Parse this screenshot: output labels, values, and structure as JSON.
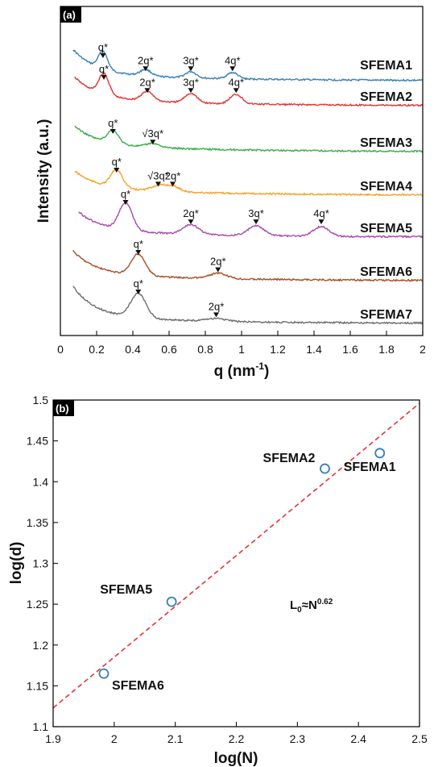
{
  "chart_data": [
    {
      "panel": "(a)",
      "type": "line",
      "xlabel": "q (nm",
      "xlabel_sup": "-1",
      "xlabel_close": ")",
      "ylabel": "Intensity (a.u.)",
      "xlim": [
        0,
        2
      ],
      "xticks": [
        "0",
        "0.2",
        "0.4",
        "0.6",
        "0.8",
        "1",
        "1.2",
        "1.4",
        "1.6",
        "1.8",
        "2"
      ],
      "series": [
        {
          "name": "SFEMA1",
          "color": "#3a7fb3",
          "q_star": 0.235,
          "q_start": 0.07,
          "peaks": [
            {
              "label": "q*",
              "q": 0.235
            },
            {
              "label": "2q*",
              "q": 0.47
            },
            {
              "label": "3q*",
              "q": 0.72
            },
            {
              "label": "4q*",
              "q": 0.95
            }
          ]
        },
        {
          "name": "SFEMA2",
          "color": "#e83232",
          "q_star": 0.24,
          "q_start": 0.08,
          "peaks": [
            {
              "label": "q*",
              "q": 0.24
            },
            {
              "label": "2q*",
              "q": 0.48
            },
            {
              "label": "3q*",
              "q": 0.72
            },
            {
              "label": "4q*",
              "q": 0.97
            }
          ]
        },
        {
          "name": "SFEMA3",
          "color": "#3bad4a",
          "q_star": 0.29,
          "q_start": 0.08,
          "peaks": [
            {
              "label": "q*",
              "q": 0.29
            },
            {
              "label": "√3q*",
              "q": 0.51
            }
          ]
        },
        {
          "name": "SFEMA4",
          "color": "#f5a02a",
          "q_star": 0.31,
          "q_start": 0.08,
          "peaks": [
            {
              "label": "q*",
              "q": 0.31
            },
            {
              "label": "√3q*",
              "q": 0.54
            },
            {
              "label": "2q*",
              "q": 0.62
            }
          ]
        },
        {
          "name": "SFEMA5",
          "color": "#a74aa8",
          "q_star": 0.36,
          "q_start": 0.1,
          "peaks": [
            {
              "label": "q*",
              "q": 0.36
            },
            {
              "label": "2q*",
              "q": 0.72
            },
            {
              "label": "3q*",
              "q": 1.08
            },
            {
              "label": "4q*",
              "q": 1.44
            }
          ]
        },
        {
          "name": "SFEMA6",
          "color": "#a84f26",
          "q_star": 0.43,
          "q_start": 0.07,
          "peaks": [
            {
              "label": "q*",
              "q": 0.43
            },
            {
              "label": "2q*",
              "q": 0.87
            }
          ]
        },
        {
          "name": "SFEMA7",
          "color": "#6d6d6d",
          "q_star": 0.43,
          "q_start": 0.07,
          "peaks": [
            {
              "label": "q*",
              "q": 0.43
            },
            {
              "label": "2q*",
              "q": 0.86
            }
          ]
        }
      ]
    },
    {
      "panel": "(b)",
      "type": "scatter",
      "xlabel": "log(N)",
      "ylabel": "log(d)",
      "xlim": [
        1.9,
        2.5
      ],
      "ylim": [
        1.1,
        1.5
      ],
      "xticks": [
        "1.9",
        "2",
        "2.1",
        "2.2",
        "2.3",
        "2.4",
        "2.5"
      ],
      "yticks": [
        "1.1",
        "1.15",
        "1.2",
        "1.25",
        "1.3",
        "1.35",
        "1.4",
        "1.45",
        "1.5"
      ],
      "points": [
        {
          "name": "SFEMA1",
          "x": 2.435,
          "y": 1.435
        },
        {
          "name": "SFEMA2",
          "x": 2.345,
          "y": 1.416
        },
        {
          "name": "SFEMA5",
          "x": 2.094,
          "y": 1.253
        },
        {
          "name": "SFEMA6",
          "x": 1.983,
          "y": 1.165
        }
      ],
      "fit_line": {
        "x": [
          1.9,
          2.5
        ],
        "y": [
          1.123,
          1.496
        ],
        "style": "dashed",
        "color": "#e83232"
      },
      "annotation_base": "L",
      "annotation_sub": "0",
      "annotation_mid": "≈N",
      "annotation_sup": "0.62",
      "marker_color": "#3a7fb3"
    }
  ]
}
